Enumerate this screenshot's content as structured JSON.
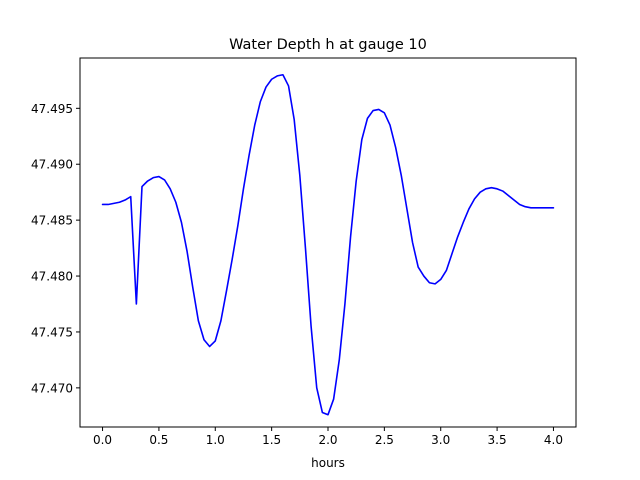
{
  "chart_data": {
    "type": "line",
    "title": "Water Depth h at gauge 10",
    "xlabel": "hours",
    "ylabel": "",
    "xlim": [
      -0.2,
      4.2
    ],
    "ylim": [
      47.4665,
      47.4995
    ],
    "xticks": [
      0.0,
      0.5,
      1.0,
      1.5,
      2.0,
      2.5,
      3.0,
      3.5,
      4.0
    ],
    "xtick_labels": [
      "0.0",
      "0.5",
      "1.0",
      "1.5",
      "2.0",
      "2.5",
      "3.0",
      "3.5",
      "4.0"
    ],
    "yticks": [
      47.47,
      47.475,
      47.48,
      47.485,
      47.49,
      47.495
    ],
    "ytick_labels": [
      "47.470",
      "47.475",
      "47.480",
      "47.485",
      "47.490",
      "47.495"
    ],
    "grid": false,
    "series": [
      {
        "color": "#0000ff",
        "x": [
          0.0,
          0.05,
          0.1,
          0.15,
          0.2,
          0.25,
          0.3,
          0.35,
          0.4,
          0.45,
          0.5,
          0.55,
          0.6,
          0.65,
          0.7,
          0.75,
          0.8,
          0.85,
          0.9,
          0.95,
          1.0,
          1.05,
          1.1,
          1.15,
          1.2,
          1.25,
          1.3,
          1.35,
          1.4,
          1.45,
          1.5,
          1.55,
          1.6,
          1.65,
          1.7,
          1.75,
          1.8,
          1.85,
          1.9,
          1.95,
          2.0,
          2.05,
          2.1,
          2.15,
          2.2,
          2.25,
          2.3,
          2.35,
          2.4,
          2.45,
          2.5,
          2.55,
          2.6,
          2.65,
          2.7,
          2.75,
          2.8,
          2.85,
          2.9,
          2.95,
          3.0,
          3.05,
          3.1,
          3.15,
          3.2,
          3.25,
          3.3,
          3.35,
          3.4,
          3.45,
          3.5,
          3.55,
          3.6,
          3.65,
          3.7,
          3.75,
          3.8,
          3.85,
          3.9,
          3.95,
          4.0
        ],
        "y": [
          47.4864,
          47.4864,
          47.4865,
          47.4866,
          47.4868,
          47.4871,
          47.4775,
          47.488,
          47.4885,
          47.4888,
          47.4889,
          47.4886,
          47.4878,
          47.4866,
          47.4848,
          47.4822,
          47.479,
          47.476,
          47.4743,
          47.4737,
          47.4742,
          47.476,
          47.4787,
          47.4815,
          47.4845,
          47.4878,
          47.4908,
          47.4935,
          47.4956,
          47.4969,
          47.4976,
          47.4979,
          47.498,
          47.497,
          47.494,
          47.489,
          47.4825,
          47.4755,
          47.47,
          47.4678,
          47.4676,
          47.469,
          47.4725,
          47.4775,
          47.4835,
          47.4885,
          47.4922,
          47.4941,
          47.4948,
          47.4949,
          47.4946,
          47.4935,
          47.4915,
          47.489,
          47.486,
          47.483,
          47.4808,
          47.48,
          47.4794,
          47.4793,
          47.4797,
          47.4805,
          47.482,
          47.4835,
          47.4848,
          47.486,
          47.4869,
          47.4875,
          47.4878,
          47.4879,
          47.4878,
          47.4876,
          47.4872,
          47.4868,
          47.4864,
          47.4862,
          47.4861,
          47.4861,
          47.4861,
          47.4861,
          47.4861
        ]
      }
    ]
  }
}
